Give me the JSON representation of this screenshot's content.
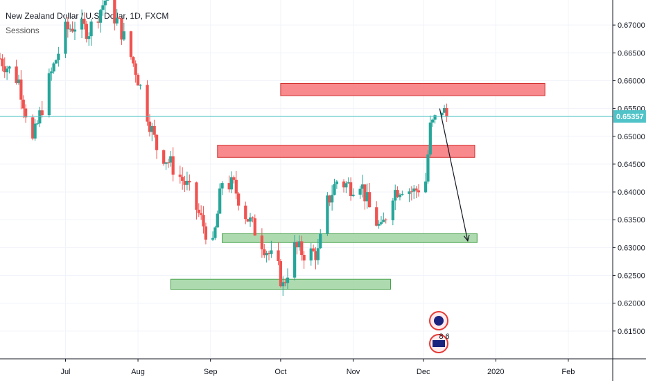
{
  "header": {
    "title": "New Zealand Dollar / U.S. Dollar, 1D, FXCM",
    "indicator": "Sessions"
  },
  "colors": {
    "up": "#26a69a",
    "down": "#ef5350",
    "resistance_fill": "#f77c80",
    "support_fill": "#a5d6a7",
    "current_line": "#4fc3c7",
    "grid": "#f0f3fa",
    "axis_line": "#131722"
  },
  "chart_data": {
    "type": "candlestick",
    "symbol": "New Zealand Dollar / U.S. Dollar, 1D, FXCM",
    "ylim": [
      0.61,
      0.6745
    ],
    "xlim": [
      "2019-06-03",
      "2020-02-20"
    ],
    "y_ticks": [
      "0.67000",
      "0.66500",
      "0.66000",
      "0.65500",
      "0.65000",
      "0.64500",
      "0.64000",
      "0.63500",
      "0.63000",
      "0.62500",
      "0.62000",
      "0.61500"
    ],
    "x_ticks": [
      {
        "date": "2019-07-01",
        "label": "Jul"
      },
      {
        "date": "2019-08-01",
        "label": "Aug"
      },
      {
        "date": "2019-09-01",
        "label": "Sep"
      },
      {
        "date": "2019-10-01",
        "label": "Oct"
      },
      {
        "date": "2019-11-01",
        "label": "Nov"
      },
      {
        "date": "2019-12-01",
        "label": "Dec"
      },
      {
        "date": "2020-01-01",
        "label": "2020"
      },
      {
        "date": "2020-02-01",
        "label": "Feb"
      }
    ],
    "current_price": "0.65357",
    "zones": [
      {
        "kind": "resistance",
        "from": "2019-10-01",
        "to": "2020-01-22",
        "low": 0.6573,
        "high": 0.6595
      },
      {
        "kind": "resistance",
        "from": "2019-09-04",
        "to": "2019-12-23",
        "low": 0.6462,
        "high": 0.6484
      },
      {
        "kind": "support",
        "from": "2019-09-06",
        "to": "2019-12-24",
        "low": 0.6309,
        "high": 0.6325
      },
      {
        "kind": "support",
        "from": "2019-08-15",
        "to": "2019-11-17",
        "low": 0.6225,
        "high": 0.6243
      }
    ],
    "arrow": {
      "from_date": "2019-12-08",
      "from_price": 0.655,
      "to_date": "2019-12-20",
      "to_price": 0.6312
    },
    "anchors": [
      [
        "2019-06-03",
        0.664
      ],
      [
        "2019-06-11",
        0.66
      ],
      [
        "2019-06-17",
        0.649
      ],
      [
        "2019-06-24",
        0.66
      ],
      [
        "2019-07-01",
        0.669
      ],
      [
        "2019-07-05",
        0.67
      ],
      [
        "2019-07-11",
        0.669
      ],
      [
        "2019-07-18",
        0.6745
      ],
      [
        "2019-07-24",
        0.67
      ],
      [
        "2019-07-31",
        0.662
      ],
      [
        "2019-08-05",
        0.654
      ],
      [
        "2019-08-09",
        0.648
      ],
      [
        "2019-08-15",
        0.645
      ],
      [
        "2019-08-22",
        0.641
      ],
      [
        "2019-08-28",
        0.635
      ],
      [
        "2019-09-02",
        0.63
      ],
      [
        "2019-09-06",
        0.642
      ],
      [
        "2019-09-11",
        0.641
      ],
      [
        "2019-09-16",
        0.636
      ],
      [
        "2019-09-23",
        0.631
      ],
      [
        "2019-09-30",
        0.626
      ],
      [
        "2019-10-02",
        0.623
      ],
      [
        "2019-10-07",
        0.63
      ],
      [
        "2019-10-11",
        0.629
      ],
      [
        "2019-10-17",
        0.629
      ],
      [
        "2019-10-21",
        0.638
      ],
      [
        "2019-10-25",
        0.642
      ],
      [
        "2019-10-31",
        0.641
      ],
      [
        "2019-11-04",
        0.642
      ],
      [
        "2019-11-08",
        0.637
      ],
      [
        "2019-11-13",
        0.633
      ],
      [
        "2019-11-18",
        0.64
      ],
      [
        "2019-11-22",
        0.641
      ],
      [
        "2019-11-27",
        0.64
      ],
      [
        "2019-12-02",
        0.642
      ],
      [
        "2019-12-04",
        0.6515
      ],
      [
        "2019-12-09",
        0.655
      ],
      [
        "2019-12-11",
        0.65357
      ]
    ]
  },
  "watermark": {
    "text": "8 6"
  }
}
